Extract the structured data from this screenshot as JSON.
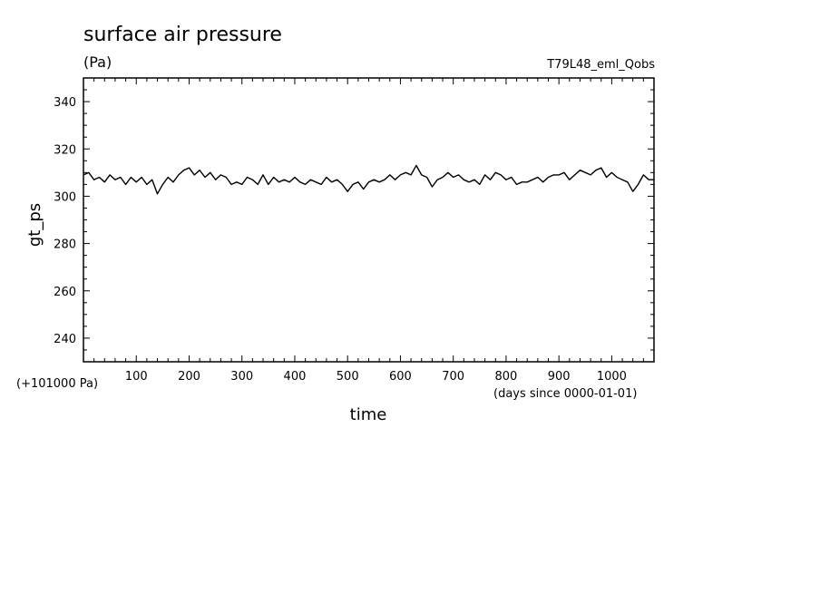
{
  "chart_data": {
    "type": "line",
    "title": "surface air pressure",
    "units": "(Pa)",
    "experiment": "T79L48_eml_Qobs",
    "xlabel": "time",
    "x_units": "(days since 0000-01-01)",
    "ylabel": "gt_ps",
    "y_offset_label": "(+101000 Pa)",
    "xlim": [
      0,
      1080
    ],
    "ylim": [
      230,
      350
    ],
    "x_ticks": [
      100,
      200,
      300,
      400,
      500,
      600,
      700,
      800,
      900,
      1000
    ],
    "x_tick_labels": [
      "100",
      "200",
      "300",
      "400",
      "500",
      "600",
      "700",
      "800",
      "900",
      "1000"
    ],
    "y_ticks": [
      240,
      260,
      280,
      300,
      320,
      340
    ],
    "y_tick_labels": [
      "240",
      "260",
      "280",
      "300",
      "320",
      "340"
    ],
    "grid": false,
    "series": [
      {
        "x": [
          0,
          10,
          20,
          30,
          40,
          50,
          60,
          70,
          80,
          90,
          100,
          110,
          120,
          130,
          140,
          150,
          160,
          170,
          180,
          190,
          200,
          210,
          220,
          230,
          240,
          250,
          260,
          270,
          280,
          290,
          300,
          310,
          320,
          330,
          340,
          350,
          360,
          370,
          380,
          390,
          400,
          410,
          420,
          430,
          440,
          450,
          460,
          470,
          480,
          490,
          500,
          510,
          520,
          530,
          540,
          550,
          560,
          570,
          580,
          590,
          600,
          610,
          620,
          630,
          640,
          650,
          660,
          670,
          680,
          690,
          700,
          710,
          720,
          730,
          740,
          750,
          760,
          770,
          780,
          790,
          800,
          810,
          820,
          830,
          840,
          850,
          860,
          870,
          880,
          890,
          900,
          910,
          920,
          930,
          940,
          950,
          960,
          970,
          980,
          990,
          1000,
          1010,
          1020,
          1030,
          1040,
          1050,
          1060,
          1070,
          1080
        ],
        "values": [
          309,
          310,
          307,
          308,
          306,
          309,
          307,
          308,
          305,
          308,
          306,
          308,
          305,
          307,
          301,
          305,
          308,
          306,
          309,
          311,
          312,
          309,
          311,
          308,
          310,
          307,
          309,
          308,
          305,
          306,
          305,
          308,
          307,
          305,
          309,
          305,
          308,
          306,
          307,
          306,
          308,
          306,
          305,
          307,
          306,
          305,
          308,
          306,
          307,
          305,
          302,
          305,
          306,
          303,
          306,
          307,
          306,
          307,
          309,
          307,
          309,
          310,
          309,
          313,
          309,
          308,
          304,
          307,
          308,
          310,
          308,
          309,
          307,
          306,
          307,
          305,
          309,
          307,
          310,
          309,
          307,
          308,
          305,
          306,
          306,
          307,
          308,
          306,
          308,
          309,
          309,
          310,
          307,
          309,
          311,
          310,
          309,
          311,
          312,
          308,
          310,
          308,
          307,
          306,
          302,
          305,
          309,
          307,
          307
        ]
      }
    ]
  }
}
